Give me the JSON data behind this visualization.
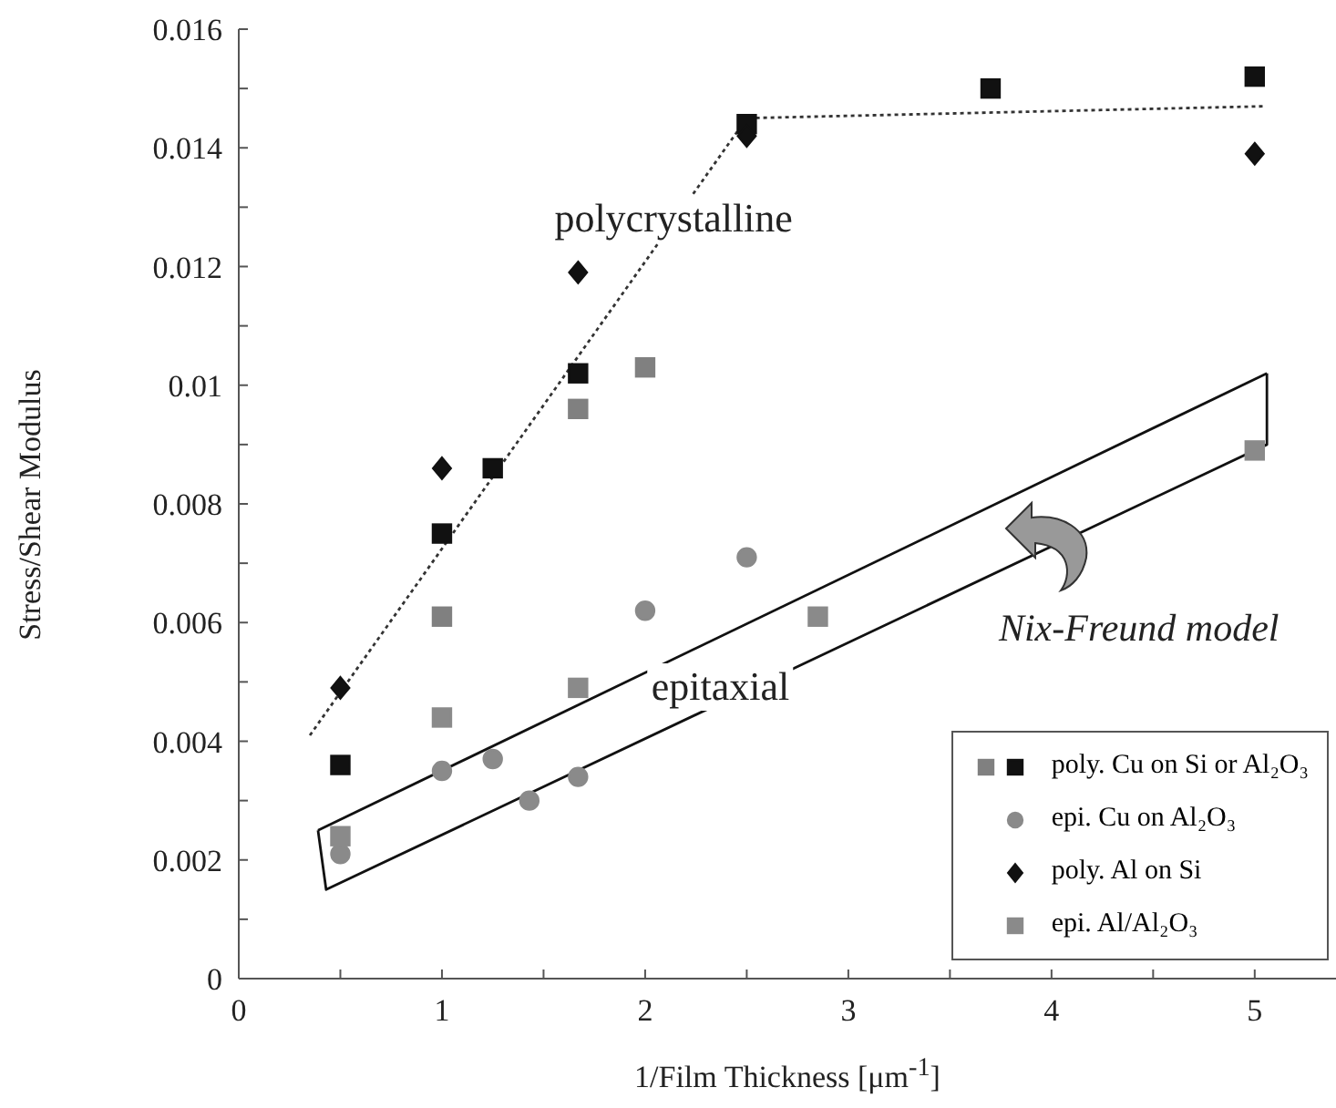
{
  "chart_data": {
    "type": "scatter",
    "xlabel": "1/Film Thickness [μm$^{-1}$]",
    "ylabel": "Stress/Shear Modulus",
    "xlim": [
      0,
      5.4
    ],
    "xticks": [
      0,
      {
        "value": 0.5,
        "label": null
      },
      1,
      {
        "value": 1.5,
        "label": null
      },
      2,
      {
        "value": 2.5,
        "label": null
      },
      3,
      {
        "value": 3.5,
        "label": null
      },
      4,
      {
        "value": 4.5,
        "label": null
      },
      5
    ],
    "ylim": [
      0,
      0.016
    ],
    "yticks": [
      0,
      {
        "value": 0.001,
        "label": null
      },
      0.002,
      {
        "value": 0.003,
        "label": null
      },
      0.004,
      {
        "value": 0.005,
        "label": null
      },
      0.006,
      {
        "value": 0.007,
        "label": null
      },
      0.008,
      {
        "value": 0.009,
        "label": null
      },
      0.01,
      {
        "value": 0.011,
        "label": null
      },
      0.012,
      {
        "value": 0.013,
        "label": null
      },
      0.014,
      {
        "value": 0.015,
        "label": null
      },
      0.016
    ],
    "grid": false,
    "legend": "bottom right",
    "series": [
      {
        "name": "poly. Cu on Si or Al₂O₃",
        "color": "#111111",
        "marker": "square",
        "x": [
          0.5,
          1,
          1.25,
          1.67,
          2.5,
          3.7,
          5
        ],
        "values": [
          0.0036,
          0.0075,
          0.0086,
          0.0102,
          0.0144,
          0.015,
          0.0152
        ]
      },
      {
        "color": "#808080",
        "marker": "square",
        "x": [
          1,
          1.67,
          2
        ],
        "values": [
          0.0061,
          0.0096,
          0.0103
        ]
      },
      {
        "name": "epi. Cu on Al₂O₃",
        "color": "#8a8a8a",
        "marker": "circle",
        "x": [
          0.5,
          1,
          1.25,
          1.43,
          1.67,
          2,
          2.5
        ],
        "values": [
          0.0021,
          0.0035,
          0.0037,
          0.003,
          0.0034,
          0.0062,
          0.0071
        ]
      },
      {
        "name": "poly. Al on Si",
        "color": "#111111",
        "marker": "diamond",
        "x": [
          0.5,
          1,
          1.67,
          2.5,
          5
        ],
        "values": [
          0.0049,
          0.0086,
          0.0119,
          0.0142,
          0.0139
        ]
      },
      {
        "name": "epi. Al/Al₂O₃",
        "color": "#8a8a8a",
        "marker": "square",
        "x": [
          0.5,
          1,
          1.67,
          2.85,
          5
        ],
        "values": [
          0.0024,
          0.0044,
          0.0049,
          0.0061,
          0.0089
        ]
      },
      {
        "type": "line",
        "color": "#333333",
        "line_style": "dotted",
        "x": [
          0.35,
          2.5,
          5.04
        ],
        "values": [
          0.0041,
          0.0145,
          0.0147
        ]
      },
      {
        "type": "line",
        "color": "#111111",
        "line_style": "solid",
        "x": [
          0.39,
          5.06
        ],
        "values": [
          0.0025,
          0.0102
        ]
      },
      {
        "type": "line",
        "color": "#111111",
        "line_style": "solid",
        "x": [
          0.39,
          0.43,
          5.06,
          5.06
        ],
        "values": [
          0.0025,
          0.0015,
          0.009,
          0.0102
        ]
      }
    ],
    "annotations": [
      {
        "text": "polycrystalline",
        "x": 2.14,
        "y": 0.0128
      },
      "epitaxial",
      "Nix-Freund model"
    ]
  }
}
